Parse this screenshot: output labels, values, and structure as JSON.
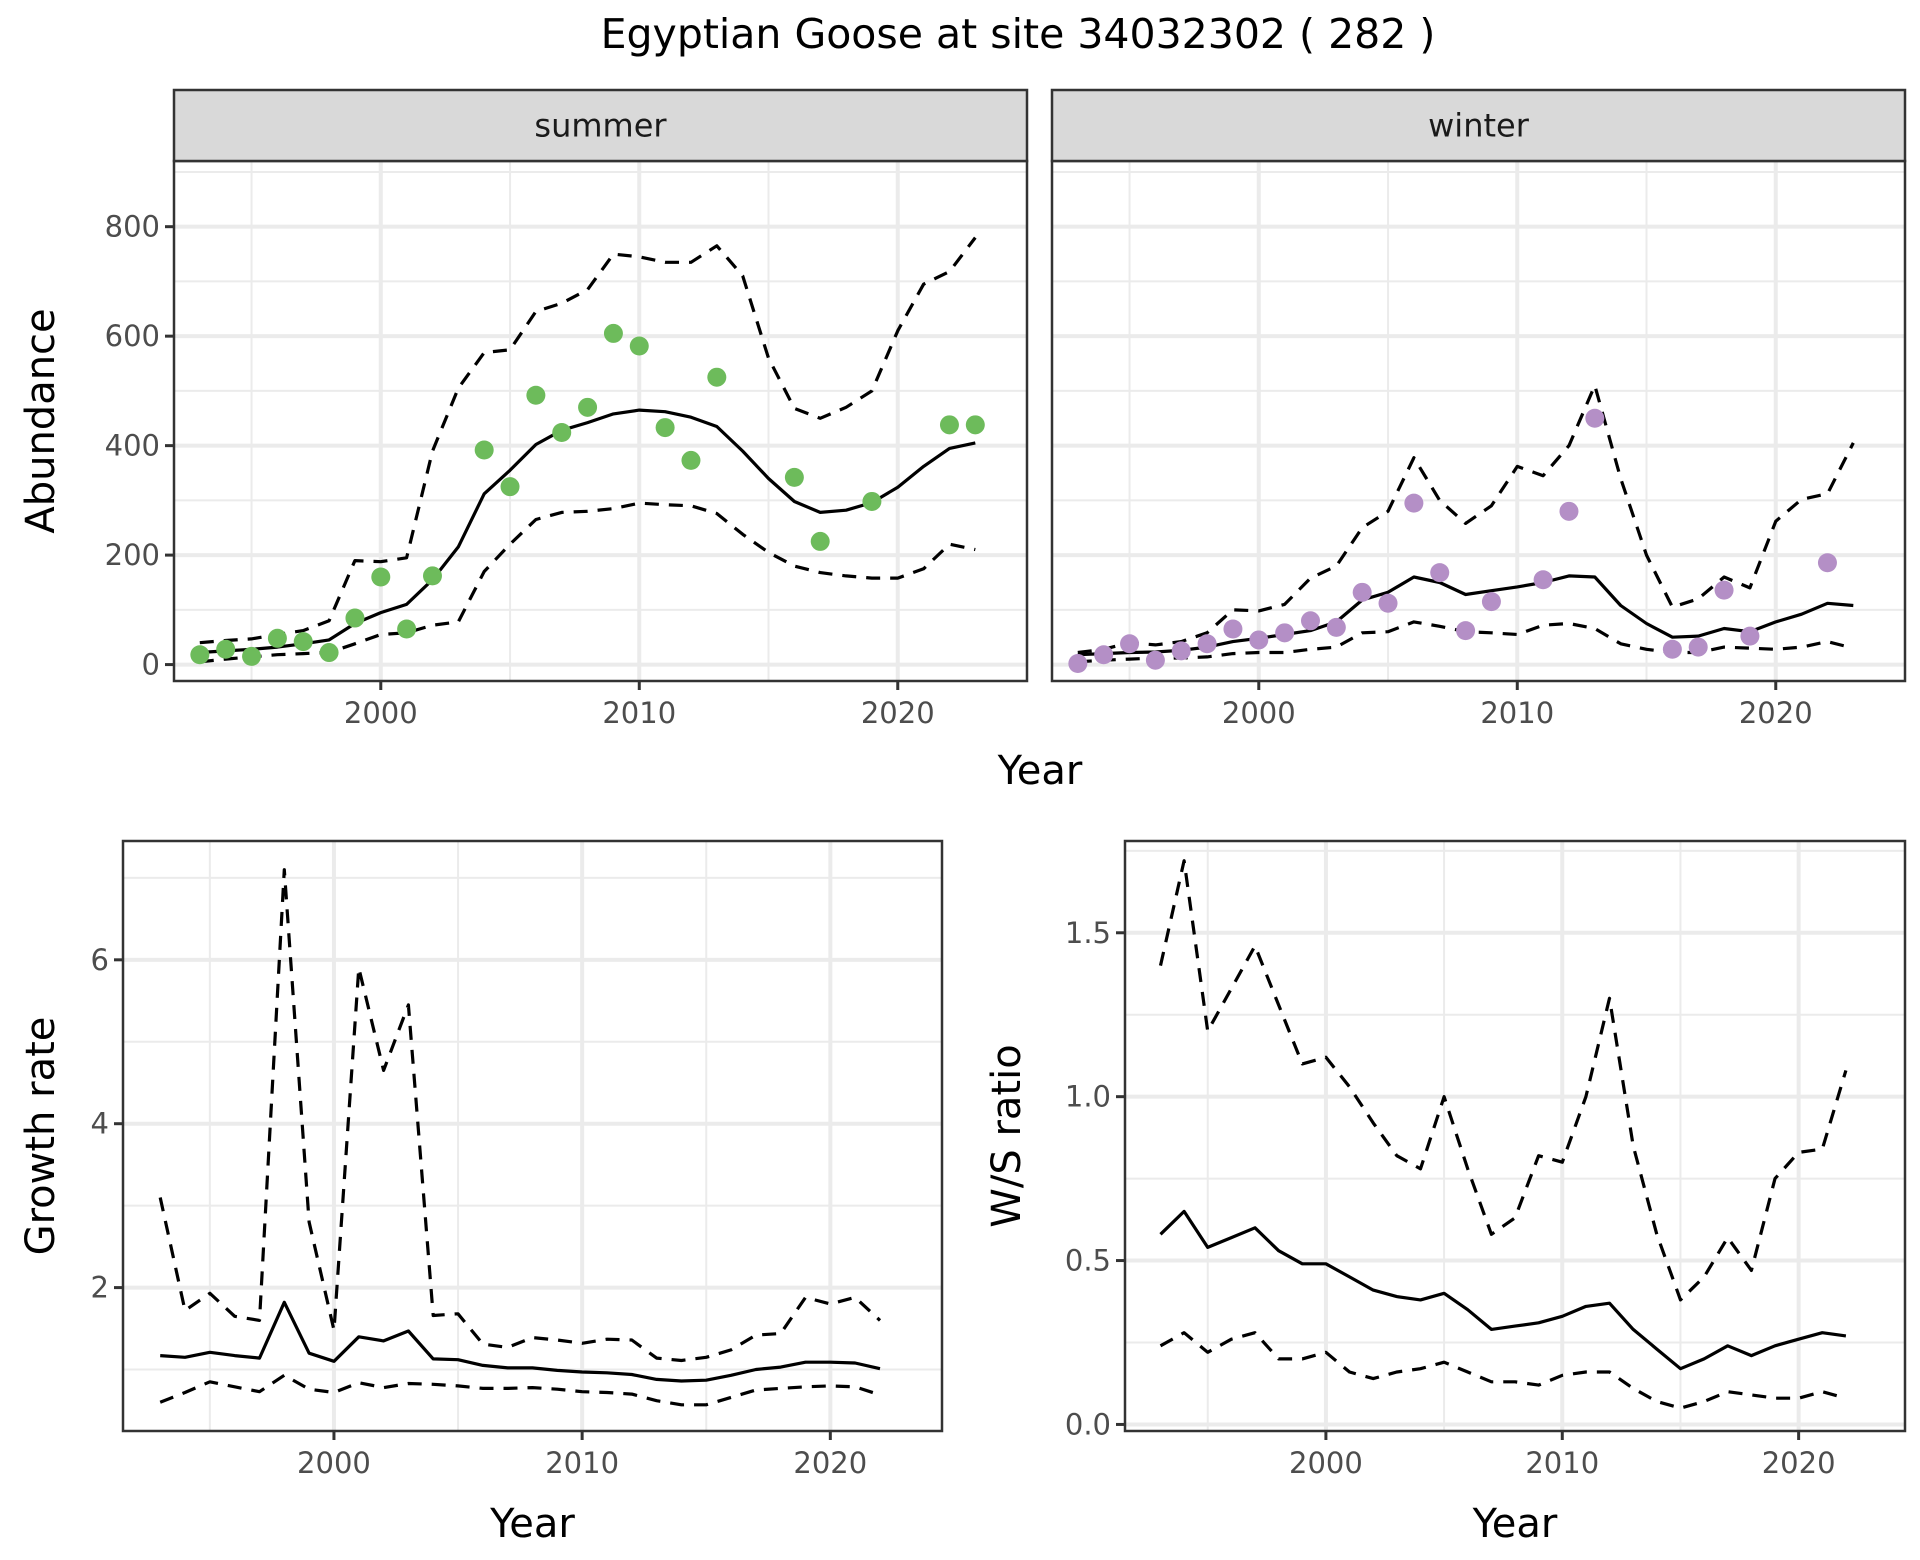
{
  "title": "Egyptian Goose at site 34032302 ( 282 )",
  "colors": {
    "summer_points": "#6dbb5b",
    "winter_points": "#b48fc6",
    "line": "#000000",
    "grid": "#ebebeb",
    "strip": "#d9d9d9"
  },
  "chart_data": [
    {
      "type": "line",
      "panel": "summer",
      "strip_label": "summer",
      "xlabel": "Year",
      "ylabel": "Abundance",
      "xlim": [
        1992,
        2025
      ],
      "ylim": [
        -30,
        920
      ],
      "xticks": [
        2000,
        2010,
        2020
      ],
      "xtick_labels": [
        "2000",
        "2010",
        "2020"
      ],
      "yticks": [
        0,
        200,
        400,
        600,
        800
      ],
      "ytick_labels": [
        "0",
        "200",
        "400",
        "600",
        "800"
      ],
      "points": {
        "x": [
          1993,
          1994,
          1995,
          1996,
          1997,
          1998,
          1999,
          2000,
          2001,
          2002,
          2004,
          2005,
          2006,
          2007,
          2008,
          2009,
          2010,
          2011,
          2012,
          2013,
          2016,
          2017,
          2019,
          2022,
          2023
        ],
        "y": [
          18,
          28,
          15,
          48,
          42,
          22,
          85,
          160,
          65,
          162,
          392,
          325,
          492,
          424,
          470,
          605,
          582,
          433,
          373,
          525,
          342,
          225,
          298,
          438,
          438
        ]
      },
      "series": [
        {
          "name": "fit",
          "style": "solid",
          "x": [
            1993,
            1994,
            1995,
            1996,
            1997,
            1998,
            1999,
            2000,
            2001,
            2002,
            2003,
            2004,
            2005,
            2006,
            2007,
            2008,
            2009,
            2010,
            2011,
            2012,
            2013,
            2014,
            2015,
            2016,
            2017,
            2018,
            2019,
            2020,
            2021,
            2022,
            2023
          ],
          "y": [
            22,
            25,
            28,
            32,
            38,
            45,
            75,
            95,
            110,
            155,
            215,
            312,
            355,
            402,
            428,
            442,
            458,
            465,
            462,
            452,
            435,
            390,
            340,
            298,
            278,
            282,
            296,
            324,
            362,
            395,
            405
          ]
        },
        {
          "name": "upper",
          "style": "dashed",
          "x": [
            1993,
            1994,
            1995,
            1996,
            1997,
            1998,
            1999,
            2000,
            2001,
            2002,
            2003,
            2004,
            2005,
            2006,
            2007,
            2008,
            2009,
            2010,
            2011,
            2012,
            2013,
            2014,
            2015,
            2016,
            2017,
            2018,
            2019,
            2020,
            2021,
            2022,
            2023
          ],
          "y": [
            40,
            44,
            47,
            55,
            62,
            80,
            190,
            188,
            195,
            390,
            505,
            570,
            575,
            645,
            660,
            685,
            750,
            745,
            735,
            735,
            765,
            710,
            560,
            468,
            450,
            470,
            500,
            610,
            695,
            718,
            780
          ]
        },
        {
          "name": "lower",
          "style": "dashed",
          "x": [
            1993,
            1994,
            1995,
            1996,
            1997,
            1998,
            1999,
            2000,
            2001,
            2002,
            2003,
            2004,
            2005,
            2006,
            2007,
            2008,
            2009,
            2010,
            2011,
            2012,
            2013,
            2014,
            2015,
            2016,
            2017,
            2018,
            2019,
            2020,
            2021,
            2022,
            2023
          ],
          "y": [
            5,
            10,
            14,
            18,
            20,
            22,
            38,
            55,
            58,
            72,
            78,
            170,
            220,
            265,
            278,
            280,
            285,
            295,
            292,
            290,
            276,
            238,
            205,
            180,
            168,
            162,
            158,
            158,
            175,
            220,
            210
          ]
        }
      ]
    },
    {
      "type": "line",
      "panel": "winter",
      "strip_label": "winter",
      "xlabel": "Year",
      "ylabel": "Abundance",
      "xlim": [
        1992,
        2025
      ],
      "ylim": [
        -30,
        920
      ],
      "xticks": [
        2000,
        2010,
        2020
      ],
      "xtick_labels": [
        "2000",
        "2010",
        "2020"
      ],
      "yticks": [
        0,
        200,
        400,
        600,
        800
      ],
      "points": {
        "x": [
          1993,
          1994,
          1995,
          1996,
          1997,
          1998,
          1999,
          2000,
          2001,
          2002,
          2003,
          2004,
          2005,
          2006,
          2007,
          2008,
          2009,
          2011,
          2012,
          2013,
          2016,
          2017,
          2018,
          2019,
          2022
        ],
        "y": [
          2,
          18,
          38,
          8,
          25,
          38,
          65,
          45,
          58,
          80,
          68,
          132,
          112,
          295,
          168,
          62,
          115,
          155,
          280,
          450,
          28,
          32,
          136,
          52,
          186
        ]
      },
      "series": [
        {
          "name": "fit",
          "style": "solid",
          "x": [
            1993,
            1994,
            1995,
            1996,
            1997,
            1998,
            1999,
            2000,
            2001,
            2002,
            2003,
            2004,
            2005,
            2006,
            2007,
            2008,
            2009,
            2010,
            2011,
            2012,
            2013,
            2014,
            2015,
            2016,
            2017,
            2018,
            2019,
            2020,
            2021,
            2022,
            2023
          ],
          "y": [
            18,
            20,
            22,
            23,
            26,
            32,
            42,
            48,
            55,
            62,
            78,
            118,
            132,
            160,
            150,
            128,
            135,
            142,
            150,
            162,
            160,
            108,
            75,
            50,
            52,
            66,
            60,
            78,
            92,
            112,
            108
          ]
        },
        {
          "name": "upper",
          "style": "dashed",
          "x": [
            1993,
            1994,
            1995,
            1996,
            1997,
            1998,
            1999,
            2000,
            2001,
            2002,
            2003,
            2004,
            2005,
            2006,
            2007,
            2008,
            2009,
            2010,
            2011,
            2012,
            2013,
            2014,
            2015,
            2016,
            2017,
            2018,
            2019,
            2020,
            2021,
            2022,
            2023
          ],
          "y": [
            22,
            28,
            40,
            36,
            42,
            58,
            100,
            98,
            110,
            158,
            180,
            250,
            280,
            378,
            300,
            258,
            290,
            362,
            345,
            400,
            510,
            340,
            200,
            105,
            120,
            160,
            140,
            262,
            302,
            312,
            405
          ]
        },
        {
          "name": "lower",
          "style": "dashed",
          "x": [
            1993,
            1994,
            1995,
            1996,
            1997,
            1998,
            1999,
            2000,
            2001,
            2002,
            2003,
            2004,
            2005,
            2006,
            2007,
            2008,
            2009,
            2010,
            2011,
            2012,
            2013,
            2014,
            2015,
            2016,
            2017,
            2018,
            2019,
            2020,
            2021,
            2022,
            2023
          ],
          "y": [
            5,
            8,
            10,
            12,
            12,
            14,
            20,
            22,
            22,
            28,
            32,
            58,
            60,
            78,
            70,
            60,
            58,
            55,
            72,
            75,
            66,
            38,
            28,
            22,
            22,
            32,
            30,
            28,
            32,
            42,
            30
          ]
        }
      ]
    },
    {
      "type": "line",
      "panel": "growth",
      "xlabel": "Year",
      "ylabel": "Growth rate",
      "xlim": [
        1991.5,
        2024.5
      ],
      "ylim": [
        0.25,
        7.45
      ],
      "xticks": [
        2000,
        2010,
        2020
      ],
      "xtick_labels": [
        "2000",
        "2010",
        "2020"
      ],
      "yticks": [
        2,
        4,
        6
      ],
      "ytick_labels": [
        "2",
        "4",
        "6"
      ],
      "series": [
        {
          "name": "fit",
          "style": "solid",
          "x": [
            1993,
            1994,
            1995,
            1996,
            1997,
            1998,
            1999,
            2000,
            2001,
            2002,
            2003,
            2004,
            2005,
            2006,
            2007,
            2008,
            2009,
            2010,
            2011,
            2012,
            2013,
            2014,
            2015,
            2016,
            2017,
            2018,
            2019,
            2020,
            2021,
            2022
          ],
          "y": [
            1.17,
            1.15,
            1.21,
            1.17,
            1.14,
            1.82,
            1.2,
            1.1,
            1.4,
            1.35,
            1.47,
            1.13,
            1.12,
            1.05,
            1.02,
            1.02,
            0.99,
            0.97,
            0.96,
            0.94,
            0.88,
            0.86,
            0.87,
            0.93,
            1.0,
            1.03,
            1.09,
            1.09,
            1.08,
            1.01
          ]
        },
        {
          "name": "upper",
          "style": "dashed",
          "x": [
            1993,
            1994,
            1995,
            1996,
            1997,
            1998,
            1999,
            2000,
            2001,
            2002,
            2003,
            2004,
            2005,
            2006,
            2007,
            2008,
            2009,
            2010,
            2011,
            2012,
            2013,
            2014,
            2015,
            2016,
            2017,
            2018,
            2019,
            2020,
            2021,
            2022
          ],
          "y": [
            3.1,
            1.72,
            1.93,
            1.65,
            1.6,
            7.1,
            2.8,
            1.48,
            5.9,
            4.65,
            5.45,
            1.66,
            1.68,
            1.31,
            1.27,
            1.39,
            1.36,
            1.32,
            1.37,
            1.36,
            1.14,
            1.11,
            1.15,
            1.24,
            1.42,
            1.44,
            1.88,
            1.8,
            1.88,
            1.6
          ]
        },
        {
          "name": "lower",
          "style": "dashed",
          "x": [
            1993,
            1994,
            1995,
            1996,
            1997,
            1998,
            1999,
            2000,
            2001,
            2002,
            2003,
            2004,
            2005,
            2006,
            2007,
            2008,
            2009,
            2010,
            2011,
            2012,
            2013,
            2014,
            2015,
            2016,
            2017,
            2018,
            2019,
            2020,
            2021,
            2022
          ],
          "y": [
            0.6,
            0.72,
            0.85,
            0.79,
            0.73,
            0.93,
            0.76,
            0.72,
            0.84,
            0.78,
            0.83,
            0.82,
            0.8,
            0.77,
            0.77,
            0.78,
            0.76,
            0.73,
            0.72,
            0.7,
            0.62,
            0.57,
            0.57,
            0.66,
            0.75,
            0.77,
            0.79,
            0.8,
            0.79,
            0.69
          ]
        }
      ]
    },
    {
      "type": "line",
      "panel": "ws_ratio",
      "xlabel": "Year",
      "ylabel": "W/S ratio",
      "xlim": [
        1991.5,
        2024.5
      ],
      "ylim": [
        -0.02,
        1.78
      ],
      "xticks": [
        2000,
        2010,
        2020
      ],
      "xtick_labels": [
        "2000",
        "2010",
        "2020"
      ],
      "yticks": [
        0.0,
        0.5,
        1.0,
        1.5
      ],
      "ytick_labels": [
        "0.0",
        "0.5",
        "1.0",
        "1.5"
      ],
      "series": [
        {
          "name": "fit",
          "style": "solid",
          "x": [
            1993,
            1994,
            1995,
            1996,
            1997,
            1998,
            1999,
            2000,
            2001,
            2002,
            2003,
            2004,
            2005,
            2006,
            2007,
            2008,
            2009,
            2010,
            2011,
            2012,
            2013,
            2014,
            2015,
            2016,
            2017,
            2018,
            2019,
            2020,
            2021,
            2022
          ],
          "y": [
            0.58,
            0.65,
            0.54,
            0.57,
            0.6,
            0.53,
            0.49,
            0.49,
            0.45,
            0.41,
            0.39,
            0.38,
            0.4,
            0.35,
            0.29,
            0.3,
            0.31,
            0.33,
            0.36,
            0.37,
            0.29,
            0.23,
            0.17,
            0.2,
            0.24,
            0.21,
            0.24,
            0.26,
            0.28,
            0.27
          ]
        },
        {
          "name": "upper",
          "style": "dashed",
          "x": [
            1993,
            1994,
            1995,
            1996,
            1997,
            1998,
            1999,
            2000,
            2001,
            2002,
            2003,
            2004,
            2005,
            2006,
            2007,
            2008,
            2009,
            2010,
            2011,
            2012,
            2013,
            2014,
            2015,
            2016,
            2017,
            2018,
            2019,
            2020,
            2021,
            2022
          ],
          "y": [
            1.4,
            1.72,
            1.2,
            1.33,
            1.46,
            1.28,
            1.1,
            1.12,
            1.03,
            0.92,
            0.82,
            0.78,
            1.0,
            0.78,
            0.58,
            0.63,
            0.82,
            0.8,
            1.0,
            1.3,
            0.85,
            0.58,
            0.38,
            0.45,
            0.57,
            0.47,
            0.75,
            0.83,
            0.84,
            1.08
          ]
        },
        {
          "name": "lower",
          "style": "dashed",
          "x": [
            1993,
            1994,
            1995,
            1996,
            1997,
            1998,
            1999,
            2000,
            2001,
            2002,
            2003,
            2004,
            2005,
            2006,
            2007,
            2008,
            2009,
            2010,
            2011,
            2012,
            2013,
            2014,
            2015,
            2016,
            2017,
            2018,
            2019,
            2020,
            2021,
            2022
          ],
          "y": [
            0.24,
            0.28,
            0.22,
            0.26,
            0.28,
            0.2,
            0.2,
            0.22,
            0.16,
            0.14,
            0.16,
            0.17,
            0.19,
            0.16,
            0.13,
            0.13,
            0.12,
            0.15,
            0.16,
            0.16,
            0.11,
            0.07,
            0.05,
            0.07,
            0.1,
            0.09,
            0.08,
            0.08,
            0.1,
            0.08
          ]
        }
      ]
    }
  ]
}
